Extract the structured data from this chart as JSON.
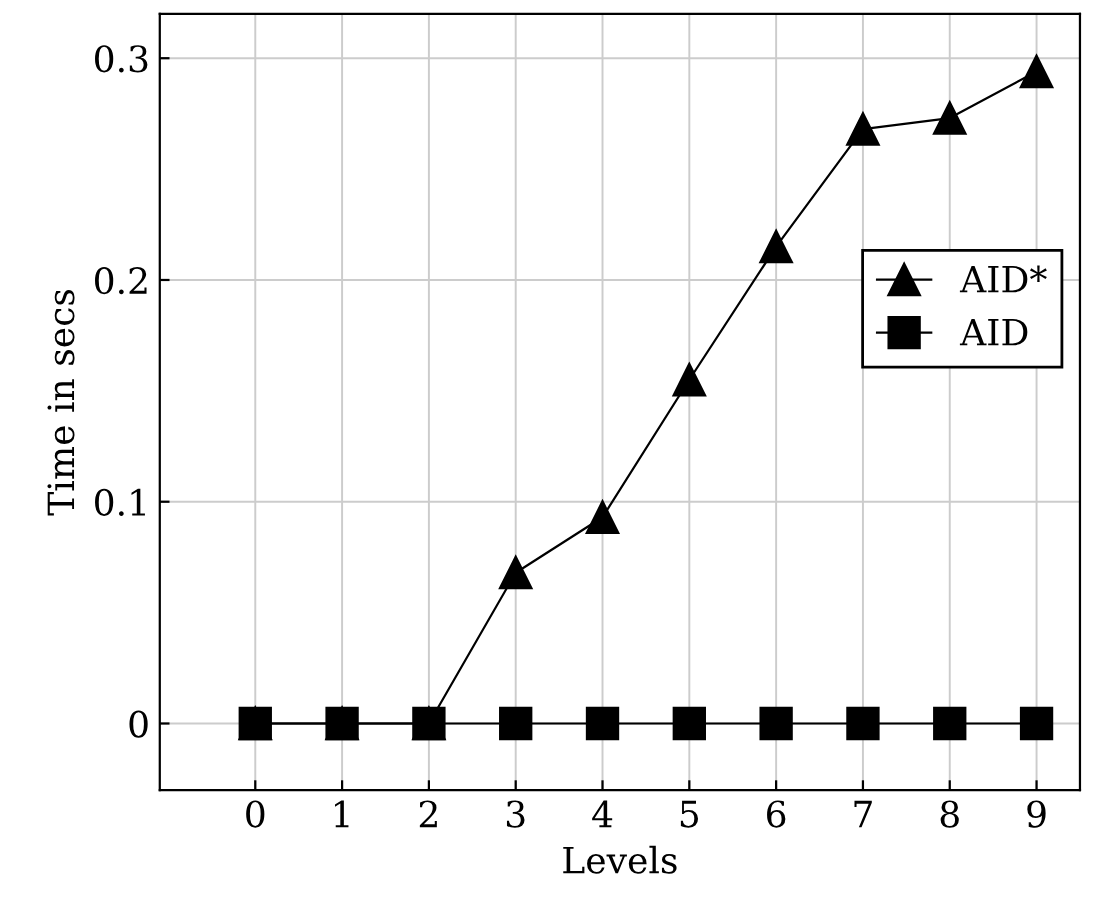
{
  "chart_data": {
    "type": "line",
    "xlabel": "Levels",
    "ylabel": "Time in secs",
    "x": [
      0,
      1,
      2,
      3,
      4,
      5,
      6,
      7,
      8,
      9
    ],
    "series": [
      {
        "name": "AID*",
        "color": "#000000",
        "marker": "triangle",
        "values": [
          0,
          0,
          0,
          0.068,
          0.093,
          0.155,
          0.215,
          0.268,
          0.273,
          0.294
        ]
      },
      {
        "name": "AID",
        "color": "#000000",
        "marker": "square",
        "values": [
          0,
          0,
          0,
          0,
          0,
          0,
          0,
          0,
          0,
          0
        ]
      }
    ],
    "xlim": [
      -1.1,
      9.5
    ],
    "ylim": [
      -0.03,
      0.32
    ],
    "xticks": [
      0,
      1,
      2,
      3,
      4,
      5,
      6,
      7,
      8,
      9
    ],
    "yticks": [
      0,
      0.1,
      0.2,
      0.3
    ],
    "grid": true,
    "legend": "right",
    "line_style": "solid"
  }
}
